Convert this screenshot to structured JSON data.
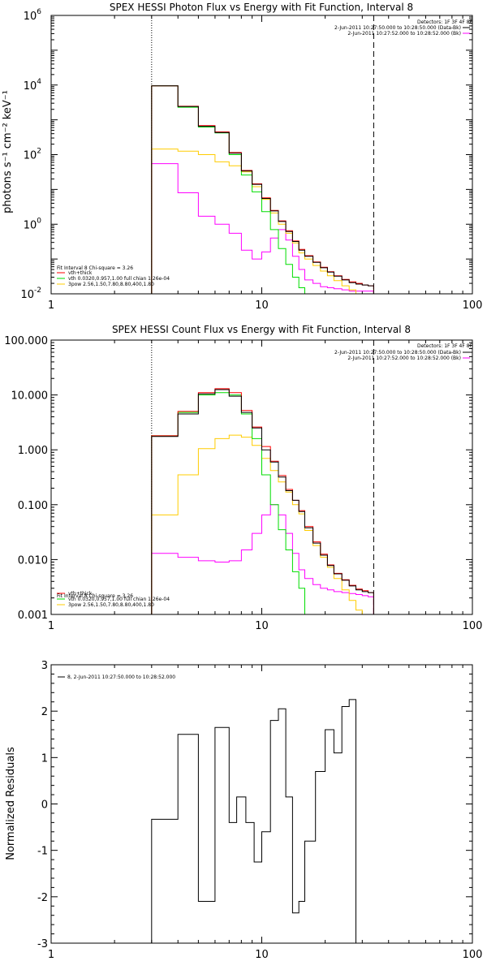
{
  "chart_data": [
    {
      "type": "line",
      "title": "SPEX HESSI Photon Flux vs Energy with Fit Function, Interval 8",
      "ylabel": "photons s⁻¹ cm⁻² keV⁻¹",
      "xscale": "log",
      "yscale": "log",
      "xlim": [
        1,
        100
      ],
      "ylim": [
        0.01,
        1000000
      ],
      "xticks": [
        {
          "v": 1,
          "label": "1"
        },
        {
          "v": 10,
          "label": "10"
        },
        {
          "v": 100,
          "label": "100"
        }
      ],
      "yticks": [
        {
          "v": 0.01,
          "label": "10",
          "exp": "-2"
        },
        {
          "v": 1,
          "label": "10",
          "exp": "0"
        },
        {
          "v": 100,
          "label": "10",
          "exp": "2"
        },
        {
          "v": 10000,
          "label": "10",
          "exp": "4"
        },
        {
          "v": 1000000,
          "label": "10",
          "exp": "6"
        }
      ],
      "vlines": [
        {
          "x": 3,
          "style": "dotted"
        },
        {
          "x": 34,
          "style": "dashed"
        }
      ],
      "detectors": "Detectors: 1F 3F 4F 8F",
      "legend_top": [
        {
          "text": "2-Jun-2011 10:27:50.000 to 10:28:50.000 (Data-Bk)",
          "color": "#000000"
        },
        {
          "text": "2-Jun-2011 10:27:52.000 to 10:28:52.000 (Bk)",
          "color": "#ff00ff"
        }
      ],
      "fit_header": "Fit Interval 8   Chi-square = 3.26",
      "fit_legend": [
        {
          "text": "vth+thick",
          "color": "#ff0000"
        },
        {
          "text": "vth 0.0320,0.957,1.00  full chian 1.26e-04",
          "color": "#00dd00"
        },
        {
          "text": "3pow 2.56,1.50,7.80,8.80,400,1.80",
          "color": "#ffcc00"
        }
      ],
      "edges": [
        3,
        4,
        5,
        6,
        7,
        8,
        9,
        10,
        11,
        12,
        13,
        14,
        15,
        16,
        17.5,
        19,
        20.5,
        22,
        24,
        26,
        28,
        30,
        32,
        34
      ],
      "series": [
        {
          "color": "#000000",
          "values": [
            9500,
            2400,
            650,
            430,
            110,
            34,
            14,
            5.5,
            2.4,
            1.2,
            0.62,
            0.32,
            0.18,
            0.12,
            0.08,
            0.056,
            0.042,
            0.032,
            0.025,
            0.021,
            0.019,
            0.018,
            0.017
          ]
        },
        {
          "color": "#ff0000",
          "values": [
            9500,
            2450,
            680,
            450,
            115,
            35,
            14.5,
            5.7,
            2.5,
            1.25,
            0.65,
            0.33,
            0.19,
            0.125,
            0.082,
            0.058,
            0.043,
            0.033,
            0.026,
            0.022,
            0.02,
            0.018,
            0.017
          ]
        },
        {
          "color": "#00dd00",
          "values": [
            9500,
            2300,
            620,
            420,
            100,
            26,
            8.5,
            2.3,
            0.7,
            0.2,
            0.07,
            0.03,
            0.015,
            0.01,
            0.01,
            0.01,
            0.01,
            0.01,
            0.01,
            0.01,
            0.01,
            0.01,
            0.01
          ]
        },
        {
          "color": "#ffcc00",
          "values": [
            145,
            125,
            100,
            62,
            48,
            32,
            12,
            5.2,
            2.1,
            1.0,
            0.55,
            0.29,
            0.15,
            0.1,
            0.065,
            0.045,
            0.033,
            0.024,
            0.017,
            0.013,
            0.01,
            0.01,
            0.01
          ]
        },
        {
          "color": "#ff00ff",
          "values": [
            55,
            8,
            1.7,
            1.0,
            0.55,
            0.18,
            0.1,
            0.16,
            0.4,
            0.7,
            0.35,
            0.12,
            0.05,
            0.025,
            0.02,
            0.016,
            0.015,
            0.014,
            0.013,
            0.012,
            0.012,
            0.012,
            0.012
          ]
        }
      ]
    },
    {
      "type": "line",
      "title": "SPEX HESSI Count Flux vs Energy with Fit Function, Interval 8",
      "ylabel": "",
      "xscale": "log",
      "yscale": "log",
      "xlim": [
        1,
        100
      ],
      "ylim": [
        0.001,
        100
      ],
      "xticks": [
        {
          "v": 1,
          "label": "1"
        },
        {
          "v": 10,
          "label": "10"
        },
        {
          "v": 100,
          "label": "100"
        }
      ],
      "yticks": [
        {
          "v": 0.001,
          "label": "0.001"
        },
        {
          "v": 0.01,
          "label": "0.010"
        },
        {
          "v": 0.1,
          "label": "0.100"
        },
        {
          "v": 1,
          "label": "1.000"
        },
        {
          "v": 10,
          "label": "10.000"
        },
        {
          "v": 100,
          "label": "100.000"
        }
      ],
      "vlines": [
        {
          "x": 3,
          "style": "dotted"
        },
        {
          "x": 34,
          "style": "dashed"
        }
      ],
      "detectors": "Detectors: 1F 3F 4F 8F",
      "legend_top": [
        {
          "text": "2-Jun-2011 10:27:50.000 to 10:28:50.000 (Data-Bk)",
          "color": "#000000"
        },
        {
          "text": "2-Jun-2011 10:27:52.000 to 10:28:52.000 (Bk)",
          "color": "#ff00ff"
        }
      ],
      "fit_header": "Fit Interval 8   Chi-square = 3.26",
      "fit_legend": [
        {
          "text": "vth+thick",
          "color": "#ff0000"
        },
        {
          "text": "vth 0.0320,0.957,1.00  full chian 1.26e-04",
          "color": "#00dd00"
        },
        {
          "text": "3pow 2.56,1.50,7.80,8.80,400,1.80",
          "color": "#ffcc00"
        }
      ],
      "edges": [
        3,
        4,
        5,
        6,
        7,
        8,
        9,
        10,
        11,
        12,
        13,
        14,
        15,
        16,
        17.5,
        19,
        20.5,
        22,
        24,
        26,
        28,
        30,
        32,
        34
      ],
      "series": [
        {
          "color": "#000000",
          "values": [
            1.75,
            4.5,
            10.5,
            12.5,
            9.5,
            4.8,
            2.5,
            1.0,
            0.6,
            0.32,
            0.18,
            0.12,
            0.075,
            0.038,
            0.02,
            0.012,
            0.0078,
            0.0055,
            0.0042,
            0.0033,
            0.0028,
            0.0026,
            0.0025
          ]
        },
        {
          "color": "#ff0000",
          "values": [
            1.8,
            5.0,
            11,
            13,
            11,
            5.2,
            2.6,
            1.15,
            0.62,
            0.34,
            0.19,
            0.12,
            0.078,
            0.04,
            0.021,
            0.0125,
            0.008,
            0.0056,
            0.0043,
            0.0034,
            0.0029,
            0.0027,
            0.0025
          ]
        },
        {
          "color": "#00dd00",
          "values": [
            1.8,
            4.8,
            10,
            11,
            10,
            4.5,
            1.6,
            0.35,
            0.1,
            0.035,
            0.015,
            0.006,
            0.003,
            0.001,
            0.001,
            0.001,
            0.001,
            0.001,
            0.001,
            0.001,
            0.001,
            0.001,
            0.001
          ]
        },
        {
          "color": "#ffcc00",
          "values": [
            0.065,
            0.35,
            1.05,
            1.6,
            1.85,
            1.7,
            1.2,
            0.7,
            0.42,
            0.26,
            0.17,
            0.1,
            0.068,
            0.034,
            0.018,
            0.011,
            0.0072,
            0.0045,
            0.0028,
            0.0018,
            0.0012,
            0.001,
            0.001
          ]
        },
        {
          "color": "#ff00ff",
          "values": [
            0.013,
            0.011,
            0.0095,
            0.009,
            0.0095,
            0.015,
            0.03,
            0.065,
            0.1,
            0.065,
            0.03,
            0.013,
            0.0065,
            0.0045,
            0.0035,
            0.003,
            0.0028,
            0.0026,
            0.0025,
            0.0024,
            0.0023,
            0.0022,
            0.0021
          ]
        }
      ]
    },
    {
      "type": "line",
      "title": "",
      "ylabel": "Normalized Residuals",
      "xscale": "log",
      "yscale": "linear",
      "xlim": [
        1,
        100
      ],
      "ylim": [
        -3,
        3
      ],
      "xticks": [
        {
          "v": 1,
          "label": "1"
        },
        {
          "v": 10,
          "label": "10"
        },
        {
          "v": 100,
          "label": "100"
        }
      ],
      "yticks": [
        {
          "v": -3,
          "label": "-3"
        },
        {
          "v": -2,
          "label": "-2"
        },
        {
          "v": -1,
          "label": "-1"
        },
        {
          "v": 0,
          "label": "0"
        },
        {
          "v": 1,
          "label": "1"
        },
        {
          "v": 2,
          "label": "2"
        },
        {
          "v": 3,
          "label": "3"
        }
      ],
      "legend_top": [
        {
          "text": "8,  2-Jun-2011 10:27:50.000 to 10:28:52.000",
          "color": "#000000"
        }
      ],
      "edges": [
        3,
        4,
        5,
        6,
        7,
        7.6,
        8.4,
        9.2,
        10,
        11,
        12,
        13,
        14,
        15,
        16,
        18,
        20,
        22,
        24,
        26,
        28,
        31,
        34
      ],
      "series": [
        {
          "color": "#000000",
          "values": [
            -0.33,
            1.5,
            -2.1,
            1.65,
            -0.4,
            0.15,
            -0.4,
            -1.25,
            -0.6,
            1.8,
            2.05,
            0.15,
            -2.35,
            -2.1,
            -0.8,
            0.7,
            1.6,
            1.1,
            2.1,
            2.25,
            null,
            null
          ]
        }
      ]
    }
  ]
}
